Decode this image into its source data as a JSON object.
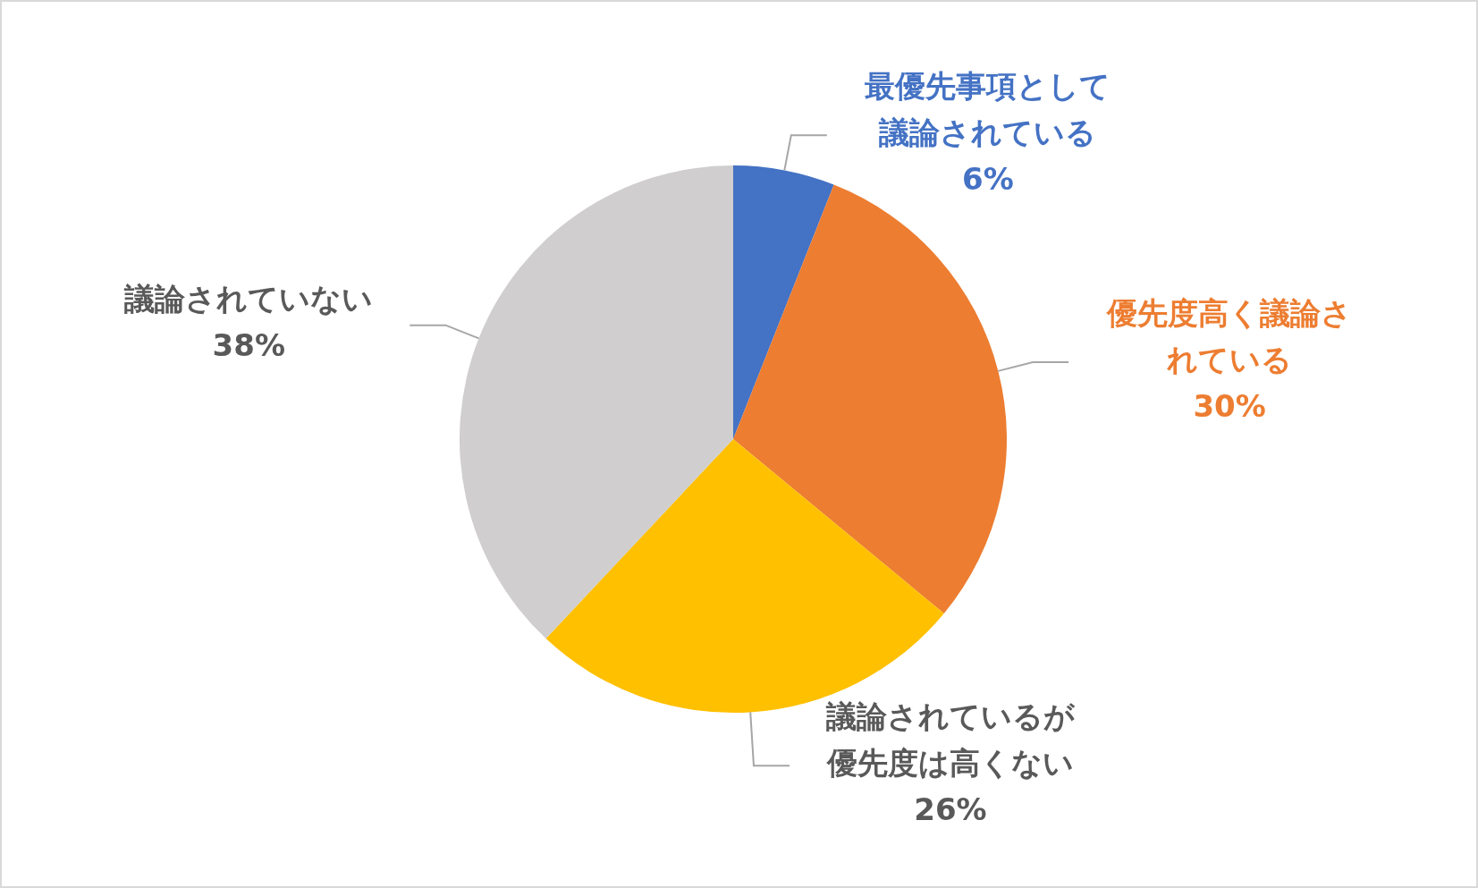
{
  "chart_data": {
    "type": "pie",
    "categories": [
      "最優先事項として議論されている",
      "優先度高く議論されている",
      "議論されているが優先度は高くない",
      "議論されていない"
    ],
    "values": [
      6,
      30,
      26,
      38
    ],
    "value_labels": [
      "6%",
      "30%",
      "26%",
      "38%"
    ],
    "colors": [
      "#4472c4",
      "#ed7d31",
      "#ffc000",
      "#d0cece"
    ],
    "legend": false
  }
}
